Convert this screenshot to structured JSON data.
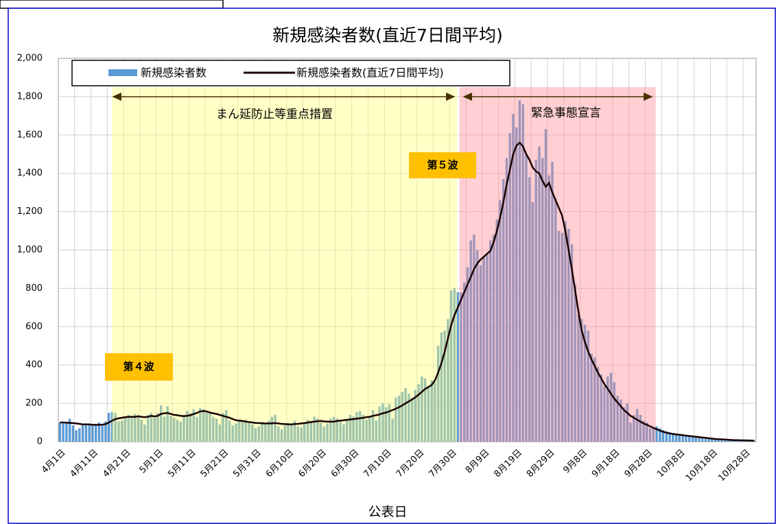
{
  "chart_data": {
    "type": "bar",
    "title": "新規感染者数(直近7日間平均)",
    "xlabel": "公表日",
    "annotations": [
      "まん延防止等重点措置",
      "緊急事態宣言",
      "第５波",
      "第４波"
    ],
    "categories": [
      "4月1日",
      null,
      null,
      null,
      null,
      null,
      null,
      null,
      null,
      null,
      "4月11日",
      null,
      null,
      null,
      null,
      null,
      null,
      null,
      null,
      null,
      "4月21日",
      null,
      null,
      null,
      null,
      null,
      null,
      null,
      null,
      null,
      "5月1日",
      null,
      null,
      null,
      null,
      null,
      null,
      null,
      null,
      null,
      "5月11日",
      null,
      null,
      null,
      null,
      null,
      null,
      null,
      null,
      null,
      "5月21日",
      null,
      null,
      null,
      null,
      null,
      null,
      null,
      null,
      null,
      "5月31日",
      null,
      null,
      null,
      null,
      null,
      null,
      null,
      null,
      null,
      "6月10日",
      null,
      null,
      null,
      null,
      null,
      null,
      null,
      null,
      null,
      "6月20日",
      null,
      null,
      null,
      null,
      null,
      null,
      null,
      null,
      null,
      "6月30日",
      null,
      null,
      null,
      null,
      null,
      null,
      null,
      null,
      null,
      "7月10日",
      null,
      null,
      null,
      null,
      null,
      null,
      null,
      null,
      null,
      "7月20日",
      null,
      null,
      null,
      null,
      null,
      null,
      null,
      null,
      null,
      "7月30日",
      null,
      null,
      null,
      null,
      null,
      null,
      null,
      null,
      null,
      "8月9日",
      null,
      null,
      null,
      null,
      null,
      null,
      null,
      null,
      null,
      "8月19日",
      null,
      null,
      null,
      null,
      null,
      null,
      null,
      null,
      null,
      "8月29日",
      null,
      null,
      null,
      null,
      null,
      null,
      null,
      null,
      null,
      "9月8日",
      null,
      null,
      null,
      null,
      null,
      null,
      null,
      null,
      null,
      "9月18日",
      null,
      null,
      null,
      null,
      null,
      null,
      null,
      null,
      null,
      "9月28日",
      null,
      null,
      null,
      null,
      null,
      null,
      null,
      null,
      null,
      "10月8日",
      null,
      null,
      null,
      null,
      null,
      null,
      null,
      null,
      null,
      "10月18日",
      null,
      null,
      null,
      null,
      null,
      null,
      null,
      null,
      null,
      "10月28日",
      null,
      null,
      null
    ],
    "series": [
      {
        "name": "新規感染者数",
        "type": "bar",
        "color": "#5b9bd5",
        "values": [
          100,
          95,
          95,
          120,
          85,
          60,
          70,
          90,
          95,
          95,
          85,
          90,
          100,
          85,
          105,
          150,
          155,
          150,
          105,
          110,
          125,
          140,
          130,
          145,
          140,
          115,
          90,
          140,
          150,
          125,
          150,
          190,
          130,
          185,
          135,
          125,
          115,
          105,
          140,
          160,
          150,
          170,
          130,
          175,
          170,
          160,
          150,
          130,
          120,
          90,
          150,
          165,
          110,
          85,
          95,
          110,
          105,
          115,
          95,
          90,
          70,
          80,
          105,
          95,
          110,
          130,
          140,
          80,
          65,
          85,
          100,
          90,
          110,
          80,
          75,
          100,
          115,
          110,
          130,
          120,
          100,
          80,
          95,
          120,
          130,
          120,
          110,
          90,
          115,
          140,
          130,
          155,
          160,
          140,
          115,
          130,
          165,
          110,
          185,
          200,
          180,
          195,
          120,
          230,
          240,
          260,
          280,
          250,
          230,
          270,
          300,
          340,
          330,
          290,
          320,
          310,
          500,
          570,
          580,
          640,
          790,
          800,
          780,
          780,
          830,
          910,
          1050,
          1080,
          1000,
          920,
          960,
          980,
          1050,
          1080,
          1160,
          1260,
          1370,
          1480,
          1610,
          1710,
          1640,
          1780,
          1760,
          1500,
          1380,
          1250,
          1470,
          1540,
          1480,
          1630,
          1390,
          1460,
          1270,
          1100,
          1090,
          1150,
          1110,
          1030,
          820,
          660,
          640,
          610,
          580,
          460,
          440,
          390,
          350,
          290,
          340,
          360,
          310,
          240,
          220,
          180,
          200,
          100,
          140,
          170,
          140,
          110,
          100,
          70,
          75,
          80,
          70,
          60,
          55,
          50,
          45,
          40,
          40,
          35,
          30,
          30,
          25,
          25,
          20,
          20,
          15,
          15,
          12,
          12,
          10,
          10,
          8,
          8,
          6,
          6,
          5,
          5,
          5,
          4,
          4,
          3
        ]
      },
      {
        "name": "新規感染者数(直近7日間平均)",
        "type": "line",
        "color": "#1a0000",
        "values": [
          100,
          100,
          99,
          98,
          97,
          95,
          93,
          90,
          90,
          90,
          88,
          88,
          88,
          89,
          92,
          100,
          110,
          118,
          122,
          125,
          128,
          130,
          130,
          130,
          132,
          130,
          128,
          130,
          135,
          132,
          135,
          145,
          148,
          150,
          145,
          140,
          138,
          135,
          133,
          135,
          138,
          145,
          150,
          158,
          160,
          158,
          152,
          148,
          145,
          140,
          135,
          130,
          125,
          118,
          112,
          110,
          108,
          105,
          102,
          100,
          98,
          97,
          96,
          95,
          95,
          96,
          97,
          95,
          93,
          92,
          90,
          90,
          92,
          93,
          95,
          97,
          100,
          102,
          105,
          107,
          108,
          106,
          105,
          104,
          105,
          108,
          110,
          112,
          114,
          116,
          118,
          120,
          122,
          125,
          128,
          130,
          135,
          138,
          142,
          148,
          152,
          158,
          165,
          172,
          180,
          190,
          200,
          210,
          220,
          232,
          245,
          260,
          275,
          285,
          295,
          320,
          360,
          410,
          470,
          540,
          610,
          660,
          700,
          740,
          780,
          820,
          860,
          900,
          930,
          950,
          965,
          980,
          995,
          1040,
          1100,
          1170,
          1250,
          1340,
          1420,
          1500,
          1545,
          1560,
          1540,
          1500,
          1470,
          1430,
          1410,
          1400,
          1360,
          1330,
          1350,
          1300,
          1260,
          1220,
          1180,
          1100,
          1000,
          900,
          790,
          680,
          580,
          520,
          470,
          430,
          395,
          360,
          330,
          300,
          275,
          250,
          225,
          205,
          185,
          165,
          150,
          135,
          125,
          115,
          105,
          95,
          88,
          80,
          72,
          65,
          58,
          52,
          47,
          43,
          40,
          38,
          36,
          34,
          32,
          30,
          28,
          26,
          24,
          22,
          20,
          18,
          16,
          14,
          13,
          12,
          11,
          10,
          9,
          8,
          8,
          7,
          7,
          6,
          6,
          5
        ]
      }
    ],
    "ylim": [
      0,
      2000
    ],
    "yticks": [
      0,
      200,
      400,
      600,
      800,
      {
        "value": 1000,
        "label": "1,000"
      },
      {
        "value": 1200,
        "label": "1,200"
      },
      {
        "value": 1400,
        "label": "1,400"
      },
      {
        "value": 1600,
        "label": "1,600"
      },
      {
        "value": 1800,
        "label": "1,800"
      },
      {
        "value": 2000,
        "label": "2,000"
      }
    ],
    "grid": true,
    "legend": "top"
  }
}
